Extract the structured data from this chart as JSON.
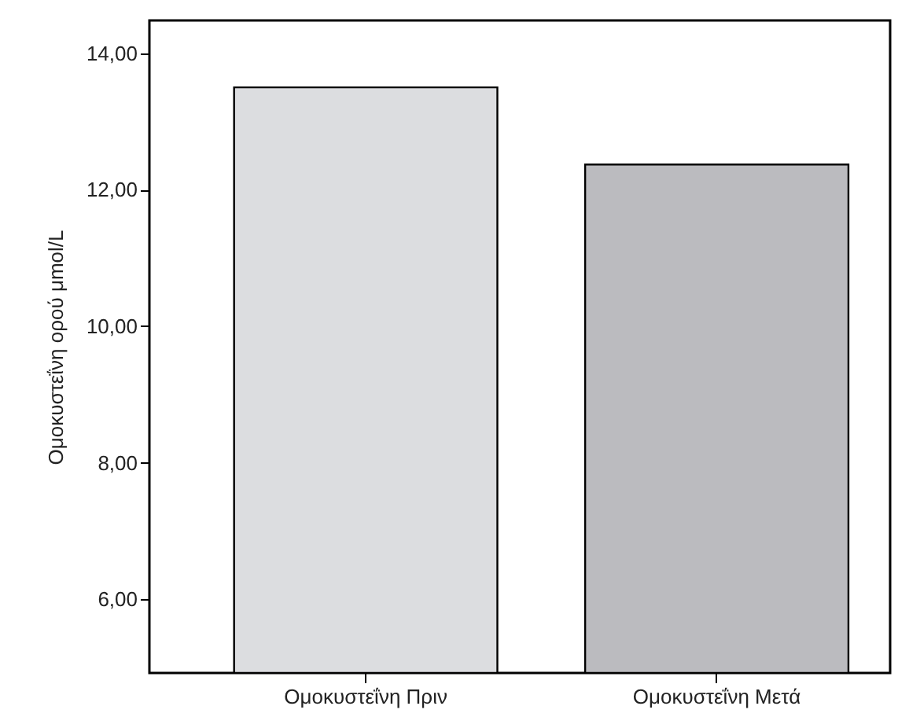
{
  "chart_data": {
    "type": "bar",
    "ylabel": "Ομοκυστεΐνη ορού μmol/L",
    "categories": [
      "Ομοκυστεΐνη Πριν",
      "Ομοκυστεΐνη Μετά"
    ],
    "values": [
      13.5,
      12.37
    ],
    "colors": [
      "#dcdde0",
      "#bbbbbf"
    ],
    "ylim": [
      4.92,
      14.48
    ],
    "yticks": [
      {
        "value": 6,
        "label": "6,00"
      },
      {
        "value": 8,
        "label": "8,00"
      },
      {
        "value": 10,
        "label": "10,00"
      },
      {
        "value": 12,
        "label": "12,00"
      },
      {
        "value": 14,
        "label": "14,00"
      }
    ],
    "grid": false
  }
}
